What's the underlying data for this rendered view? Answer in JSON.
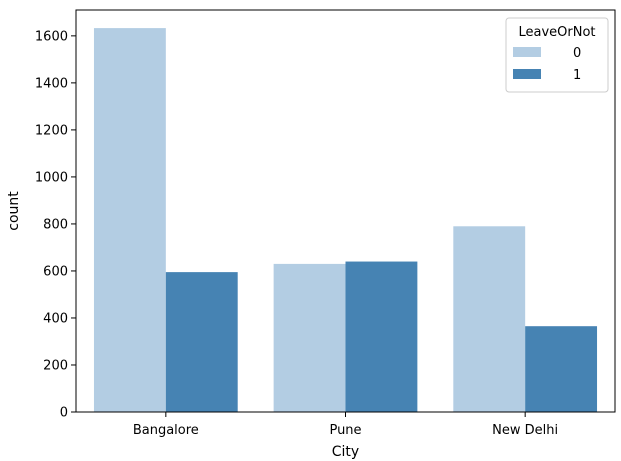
{
  "chart_data": {
    "type": "bar",
    "xlabel": "City",
    "ylabel": "count",
    "categories": [
      "Bangalore",
      "Pune",
      "New Delhi"
    ],
    "series": [
      {
        "name": "0",
        "values": [
          1633,
          630,
          790
        ],
        "color": "#b3cde3"
      },
      {
        "name": "1",
        "values": [
          595,
          640,
          365
        ],
        "color": "#4683b3"
      }
    ],
    "ylim": [
      0,
      1710
    ],
    "yticks": [
      0,
      200,
      400,
      600,
      800,
      1000,
      1200,
      1400,
      1600
    ],
    "legend": {
      "title": "LeaveOrNot",
      "placement": "top-right"
    },
    "grid": false
  }
}
